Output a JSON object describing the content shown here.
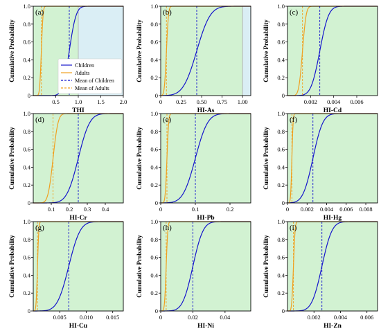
{
  "colors": {
    "children": "#1515cc",
    "adults": "#f0a020",
    "safe_region": "#d2f2d2",
    "risk_region": "#daeef5",
    "threshold_line": "#aaaaaa"
  },
  "chart_data": [
    {
      "type": "line",
      "panel_label": "(a)",
      "xlabel": "THI",
      "ylabel": "Cumulative Probability",
      "xlim": [
        0,
        2.0
      ],
      "ylim": [
        0,
        1.0
      ],
      "xticks": [
        0.5,
        1.0,
        1.5,
        2.0
      ],
      "xtick_labels": [
        "0.5",
        "1.0",
        "1.5",
        "2.0"
      ],
      "yticks": [
        0,
        0.2,
        0.4,
        0.6,
        0.8,
        1.0
      ],
      "ytick_labels": [
        "0",
        "0.2",
        "0.4",
        "0.6",
        "0.8",
        "1.0"
      ],
      "risk_threshold": 1.0,
      "legend": {
        "placement": "lower-right",
        "entries": [
          "Children",
          "Adults",
          "Mean of Children",
          "Mean of Adults"
        ]
      },
      "series": [
        {
          "name": "Children",
          "kind": "cdf",
          "mean": 0.8,
          "sd": 0.12
        },
        {
          "name": "Adults",
          "kind": "cdf",
          "mean": 0.18,
          "sd": 0.03
        },
        {
          "name": "Mean of Children",
          "kind": "vline",
          "x": 0.8
        },
        {
          "name": "Mean of Adults",
          "kind": "vline",
          "x": 0.18
        }
      ]
    },
    {
      "type": "line",
      "panel_label": "(b)",
      "xlabel": "HI-As",
      "ylabel": "Cumulative Probability",
      "xlim": [
        0,
        1.1
      ],
      "ylim": [
        0,
        1.0
      ],
      "xticks": [
        0,
        0.25,
        0.5,
        0.75,
        1.0
      ],
      "xtick_labels": [
        "0",
        "0.25",
        "0.50",
        "0.75",
        "1.00"
      ],
      "yticks": [
        0,
        0.2,
        0.4,
        0.6,
        0.8,
        1.0
      ],
      "ytick_labels": [
        "0",
        "0.2",
        "0.4",
        "0.6",
        "0.8",
        "1.0"
      ],
      "risk_threshold": 1.0,
      "series": [
        {
          "name": "Children",
          "kind": "cdf",
          "mean": 0.44,
          "sd": 0.13
        },
        {
          "name": "Adults",
          "kind": "cdf",
          "mean": 0.07,
          "sd": 0.02
        },
        {
          "name": "Mean of Children",
          "kind": "vline",
          "x": 0.44
        },
        {
          "name": "Mean of Adults",
          "kind": "vline",
          "x": 0.07
        }
      ]
    },
    {
      "type": "line",
      "panel_label": "(c)",
      "xlabel": "HI-Cd",
      "ylabel": "Cumulative Probability",
      "xlim": [
        0,
        0.0078
      ],
      "ylim": [
        0,
        1.0
      ],
      "xticks": [
        0.002,
        0.004,
        0.006
      ],
      "xtick_labels": [
        "0.002",
        "0.004",
        "0.006"
      ],
      "yticks": [
        0,
        0.2,
        0.4,
        0.6,
        0.8,
        1.0
      ],
      "ytick_labels": [
        "0",
        "0.2",
        "0.4",
        "0.6",
        "0.8",
        "1.0"
      ],
      "series": [
        {
          "name": "Children",
          "kind": "cdf",
          "mean": 0.0028,
          "sd": 0.0006
        },
        {
          "name": "Adults",
          "kind": "cdf",
          "mean": 0.0013,
          "sd": 0.00025
        },
        {
          "name": "Mean of Children",
          "kind": "vline",
          "x": 0.0028
        },
        {
          "name": "Mean of Adults",
          "kind": "vline",
          "x": 0.0013
        }
      ]
    },
    {
      "type": "line",
      "panel_label": "(d)",
      "xlabel": "HI-Cr",
      "ylabel": "Cumulative Probability",
      "xlim": [
        0,
        0.5
      ],
      "ylim": [
        0,
        1.0
      ],
      "xticks": [
        0.1,
        0.2,
        0.3,
        0.4
      ],
      "xtick_labels": [
        "0.1",
        "0.2",
        "0.3",
        "0.4"
      ],
      "yticks": [
        0,
        0.2,
        0.4,
        0.6,
        0.8,
        1.0
      ],
      "ytick_labels": [
        "0",
        "0.2",
        "0.4",
        "0.6",
        "0.8",
        "1.0"
      ],
      "series": [
        {
          "name": "Children",
          "kind": "cdf",
          "mean": 0.25,
          "sd": 0.05
        },
        {
          "name": "Adults",
          "kind": "cdf",
          "mean": 0.11,
          "sd": 0.022
        },
        {
          "name": "Mean of Children",
          "kind": "vline",
          "x": 0.25
        },
        {
          "name": "Mean of Adults",
          "kind": "vline",
          "x": 0.11
        }
      ]
    },
    {
      "type": "line",
      "panel_label": "(e)",
      "xlabel": "HI-Pb",
      "ylabel": "Cumulative Probability",
      "xlim": [
        0,
        0.26
      ],
      "ylim": [
        0,
        1.0
      ],
      "xticks": [
        0,
        0.1,
        0.2
      ],
      "xtick_labels": [
        "0",
        "0.1",
        "0.2"
      ],
      "yticks": [
        0,
        0.2,
        0.4,
        0.6,
        0.8,
        1.0
      ],
      "ytick_labels": [
        "0",
        "0.2",
        "0.4",
        "0.6",
        "0.8",
        "1.0"
      ],
      "series": [
        {
          "name": "Children",
          "kind": "cdf",
          "mean": 0.1,
          "sd": 0.028
        },
        {
          "name": "Adults",
          "kind": "cdf",
          "mean": 0.018,
          "sd": 0.004
        },
        {
          "name": "Mean of Children",
          "kind": "vline",
          "x": 0.1
        },
        {
          "name": "Mean of Adults",
          "kind": "vline",
          "x": 0.018
        }
      ]
    },
    {
      "type": "line",
      "panel_label": "(f)",
      "xlabel": "HI-Hg",
      "ylabel": "Cumulative Probability",
      "xlim": [
        0,
        0.0092
      ],
      "ylim": [
        0,
        1.0
      ],
      "xticks": [
        0,
        0.002,
        0.004,
        0.006,
        0.008
      ],
      "xtick_labels": [
        "0",
        "0.002",
        "0.004",
        "0.006",
        "0.008"
      ],
      "yticks": [
        0,
        0.2,
        0.4,
        0.6,
        0.8,
        1.0
      ],
      "ytick_labels": [
        "0",
        "0.2",
        "0.4",
        "0.6",
        "0.8",
        "1.0"
      ],
      "series": [
        {
          "name": "Children",
          "kind": "cdf",
          "mean": 0.0026,
          "sd": 0.0008
        },
        {
          "name": "Adults",
          "kind": "cdf",
          "mean": 0.00045,
          "sd": 0.0001
        },
        {
          "name": "Mean of Children",
          "kind": "vline",
          "x": 0.0026
        },
        {
          "name": "Mean of Adults",
          "kind": "vline",
          "x": 0.00045
        }
      ]
    },
    {
      "type": "line",
      "panel_label": "(g)",
      "xlabel": "HI-Cu",
      "ylabel": "Cumulative Probability",
      "xlim": [
        0,
        0.017
      ],
      "ylim": [
        0,
        1.0
      ],
      "xticks": [
        0.005,
        0.01,
        0.015
      ],
      "xtick_labels": [
        "0.005",
        "0.010",
        "0.015"
      ],
      "yticks": [
        0,
        0.2,
        0.4,
        0.6,
        0.8,
        1.0
      ],
      "ytick_labels": [
        "0",
        "0.2",
        "0.4",
        "0.6",
        "0.8",
        "1.0"
      ],
      "series": [
        {
          "name": "Children",
          "kind": "cdf",
          "mean": 0.0067,
          "sd": 0.0017
        },
        {
          "name": "Adults",
          "kind": "cdf",
          "mean": 0.0008,
          "sd": 0.0002
        },
        {
          "name": "Mean of Children",
          "kind": "vline",
          "x": 0.0067
        },
        {
          "name": "Mean of Adults",
          "kind": "vline",
          "x": 0.0008
        }
      ]
    },
    {
      "type": "line",
      "panel_label": "(h)",
      "xlabel": "HI-Ni",
      "ylabel": "Cumulative Probability",
      "xlim": [
        0,
        0.056
      ],
      "ylim": [
        0,
        1.0
      ],
      "xticks": [
        0,
        0.02,
        0.04
      ],
      "xtick_labels": [
        "0",
        "0.02",
        "0.04"
      ],
      "yticks": [
        0,
        0.2,
        0.4,
        0.6,
        0.8,
        1.0
      ],
      "ytick_labels": [
        "0",
        "0.2",
        "0.4",
        "0.6",
        "0.8",
        "1.0"
      ],
      "series": [
        {
          "name": "Children",
          "kind": "cdf",
          "mean": 0.02,
          "sd": 0.005
        },
        {
          "name": "Adults",
          "kind": "cdf",
          "mean": 0.0034,
          "sd": 0.0008
        },
        {
          "name": "Mean of Children",
          "kind": "vline",
          "x": 0.02
        },
        {
          "name": "Mean of Adults",
          "kind": "vline",
          "x": 0.0034
        }
      ]
    },
    {
      "type": "line",
      "panel_label": "(i)",
      "xlabel": "HI-Zn",
      "ylabel": "Cumulative Probability",
      "xlim": [
        0,
        0.0068
      ],
      "ylim": [
        0,
        1.0
      ],
      "xticks": [
        0.002,
        0.004,
        0.006
      ],
      "xtick_labels": [
        "0.002",
        "0.004",
        "0.006"
      ],
      "yticks": [
        0,
        0.2,
        0.4,
        0.6,
        0.8,
        1.0
      ],
      "ytick_labels": [
        "0",
        "0.2",
        "0.4",
        "0.6",
        "0.8",
        "1.0"
      ],
      "series": [
        {
          "name": "Children",
          "kind": "cdf",
          "mean": 0.0026,
          "sd": 0.0006
        },
        {
          "name": "Adults",
          "kind": "cdf",
          "mean": 0.00045,
          "sd": 0.0001
        },
        {
          "name": "Mean of Children",
          "kind": "vline",
          "x": 0.0026
        },
        {
          "name": "Mean of Adults",
          "kind": "vline",
          "x": 0.00045
        }
      ]
    }
  ]
}
